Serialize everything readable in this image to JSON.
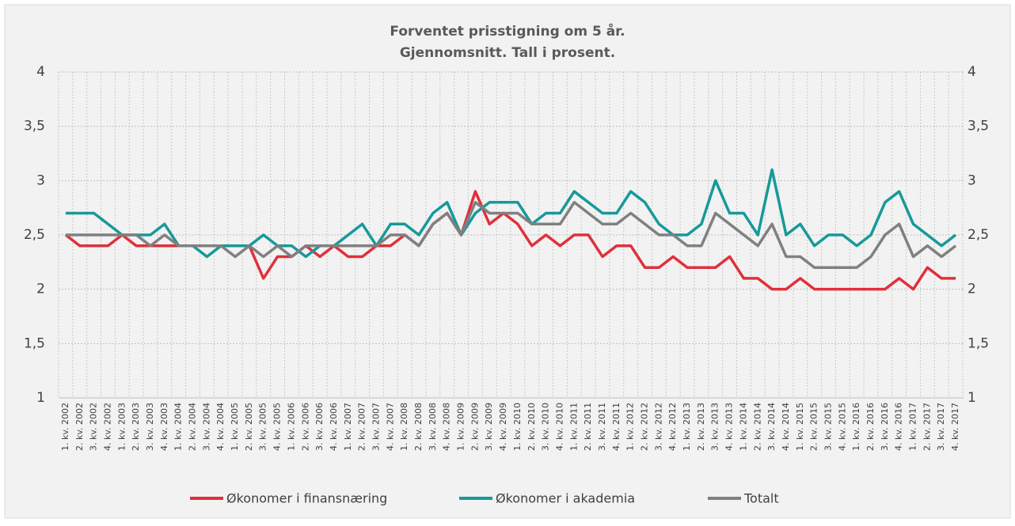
{
  "chart_data": {
    "type": "line",
    "title": "Forventet prisstigning om 5 år.",
    "subtitle": "Gjennomsnitt. Tall i prosent.",
    "categories": [
      "1. kv. 2002",
      "2. kv. 2002",
      "3. kv. 2002",
      "4. kv. 2002",
      "1. kv. 2003",
      "2. kv. 2003",
      "3. kv. 2003",
      "4. kv. 2003",
      "1. kv. 2004",
      "2. kv. 2004",
      "3. kv. 2004",
      "4. kv. 2004",
      "1. kv. 2005",
      "2. kv. 2005",
      "3. kv. 2005",
      "4. kv. 2005",
      "1. kv. 2006",
      "2. kv. 2006",
      "3. kv. 2006",
      "4. kv. 2006",
      "1. kv. 2007",
      "2. kv. 2007",
      "3. kv. 2007",
      "4. kv. 2007",
      "1. kv. 2008",
      "2. kv. 2008",
      "3. kv. 2008",
      "4. kv. 2008",
      "1. kv. 2009",
      "2. kv. 2009",
      "3. kv. 2009",
      "4. kv. 2009",
      "1. kv. 2010",
      "2. kv. 2010",
      "3. kv. 2010",
      "4. kv. 2010",
      "1. kv. 2011",
      "2. kv. 2011",
      "3. kv. 2011",
      "4. kv. 2011",
      "1. kv. 2012",
      "2. kv. 2012",
      "3. kv. 2012",
      "4. kv. 2012",
      "1. kv. 2013",
      "2. kv. 2013",
      "3. kv. 2013",
      "4. kv. 2013",
      "1. kv. 2014",
      "2. kv. 2014",
      "3. kv. 2014",
      "4. kv. 2014",
      "1. kv. 2015",
      "2. kv. 2015",
      "3. kv. 2015",
      "4. kv. 2015",
      "1. kv. 2016",
      "2. kv. 2016",
      "3. kv. 2016",
      "4. kv. 2016",
      "1. kv. 2017",
      "2. kv. 2017",
      "3. kv. 2017",
      "4. kv. 2017"
    ],
    "series": [
      {
        "name": "Økonomer i finansnæring",
        "color": "#e0303b",
        "values": [
          2.5,
          2.4,
          2.4,
          2.4,
          2.5,
          2.4,
          2.4,
          2.4,
          2.4,
          2.4,
          2.4,
          2.4,
          2.4,
          2.4,
          2.1,
          2.3,
          2.3,
          2.4,
          2.3,
          2.4,
          2.3,
          2.3,
          2.4,
          2.4,
          2.5,
          2.4,
          2.6,
          2.7,
          2.5,
          2.9,
          2.6,
          2.7,
          2.6,
          2.4,
          2.5,
          2.4,
          2.5,
          2.5,
          2.3,
          2.4,
          2.4,
          2.2,
          2.2,
          2.3,
          2.2,
          2.2,
          2.2,
          2.3,
          2.1,
          2.1,
          2.0,
          2.0,
          2.1,
          2.0,
          2.0,
          2.0,
          2.0,
          2.0,
          2.0,
          2.1,
          2.0,
          2.2,
          2.1,
          2.1
        ]
      },
      {
        "name": "Økonomer i akademia",
        "color": "#17999a",
        "values": [
          2.7,
          2.7,
          2.7,
          2.6,
          2.5,
          2.5,
          2.5,
          2.6,
          2.4,
          2.4,
          2.3,
          2.4,
          2.4,
          2.4,
          2.5,
          2.4,
          2.4,
          2.3,
          2.4,
          2.4,
          2.5,
          2.6,
          2.4,
          2.6,
          2.6,
          2.5,
          2.7,
          2.8,
          2.5,
          2.7,
          2.8,
          2.8,
          2.8,
          2.6,
          2.7,
          2.7,
          2.9,
          2.8,
          2.7,
          2.7,
          2.9,
          2.8,
          2.6,
          2.5,
          2.5,
          2.6,
          3.0,
          2.7,
          2.7,
          2.5,
          3.1,
          2.5,
          2.6,
          2.4,
          2.5,
          2.5,
          2.4,
          2.5,
          2.8,
          2.9,
          2.6,
          2.5,
          2.4,
          2.5
        ]
      },
      {
        "name": "Totalt",
        "color": "#808080",
        "values": [
          2.5,
          2.5,
          2.5,
          2.5,
          2.5,
          2.5,
          2.4,
          2.5,
          2.4,
          2.4,
          2.4,
          2.4,
          2.3,
          2.4,
          2.3,
          2.4,
          2.3,
          2.4,
          2.4,
          2.4,
          2.4,
          2.4,
          2.4,
          2.5,
          2.5,
          2.4,
          2.6,
          2.7,
          2.5,
          2.8,
          2.7,
          2.7,
          2.7,
          2.6,
          2.6,
          2.6,
          2.8,
          2.7,
          2.6,
          2.6,
          2.7,
          2.6,
          2.5,
          2.5,
          2.4,
          2.4,
          2.7,
          2.6,
          2.5,
          2.4,
          2.6,
          2.3,
          2.3,
          2.2,
          2.2,
          2.2,
          2.2,
          2.3,
          2.5,
          2.6,
          2.3,
          2.4,
          2.3,
          2.4
        ]
      }
    ],
    "ylim": [
      1,
      4
    ],
    "yticks": [
      1,
      {
        "value": 1.5,
        "label": "1,5"
      },
      2,
      {
        "value": 2.5,
        "label": "2,5"
      },
      3,
      {
        "value": 3.5,
        "label": "3,5"
      },
      4
    ],
    "y2lim": [
      1,
      4
    ],
    "y2ticks": [
      1,
      {
        "value": 1.5,
        "label": "1,5"
      },
      2,
      {
        "value": 2.5,
        "label": "2,5"
      },
      3,
      {
        "value": 3.5,
        "label": "3,5"
      },
      4
    ],
    "grid": true,
    "legend": "bottom"
  }
}
